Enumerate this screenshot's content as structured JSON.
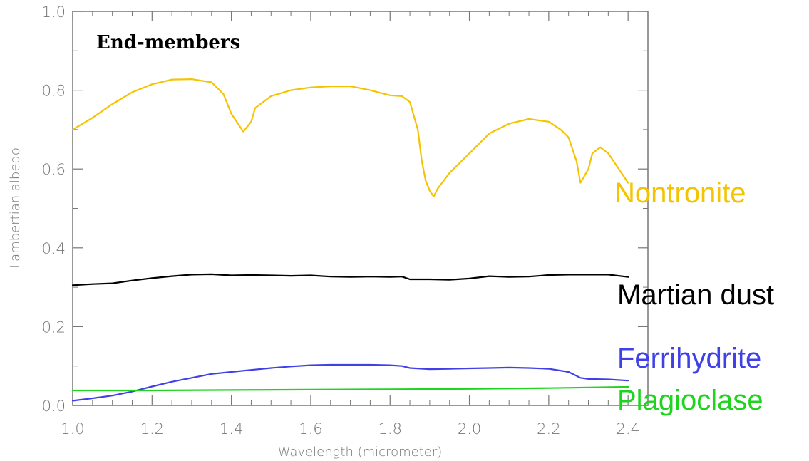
{
  "chart_data": {
    "type": "line",
    "title": "End-members",
    "xlabel": "Wavelength (micrometer)",
    "ylabel": "Lambertian albedo",
    "xlim": [
      1.0,
      2.45
    ],
    "ylim": [
      0.0,
      1.0
    ],
    "x_ticks": [
      "1.0",
      "1.2",
      "1.4",
      "1.6",
      "1.8",
      "2.0",
      "2.2",
      "2.4"
    ],
    "y_ticks": [
      "0.0",
      "0.2",
      "0.4",
      "0.6",
      "0.8",
      "1.0"
    ],
    "grid": false,
    "series": [
      {
        "name": "Nontronite",
        "color": "#f5c400",
        "x": [
          1.0,
          1.05,
          1.1,
          1.15,
          1.2,
          1.25,
          1.3,
          1.35,
          1.38,
          1.4,
          1.42,
          1.43,
          1.45,
          1.46,
          1.5,
          1.55,
          1.6,
          1.65,
          1.7,
          1.75,
          1.8,
          1.83,
          1.85,
          1.87,
          1.88,
          1.89,
          1.9,
          1.91,
          1.92,
          1.95,
          2.0,
          2.05,
          2.1,
          2.15,
          2.2,
          2.23,
          2.25,
          2.27,
          2.28,
          2.3,
          2.31,
          2.33,
          2.35,
          2.37,
          2.4
        ],
        "values": [
          0.7,
          0.73,
          0.765,
          0.795,
          0.815,
          0.827,
          0.828,
          0.82,
          0.79,
          0.74,
          0.71,
          0.695,
          0.72,
          0.755,
          0.785,
          0.8,
          0.807,
          0.81,
          0.81,
          0.8,
          0.787,
          0.785,
          0.77,
          0.7,
          0.62,
          0.57,
          0.545,
          0.53,
          0.55,
          0.59,
          0.64,
          0.69,
          0.715,
          0.727,
          0.72,
          0.7,
          0.68,
          0.62,
          0.565,
          0.6,
          0.64,
          0.655,
          0.64,
          0.61,
          0.565
        ]
      },
      {
        "name": "Martian dust",
        "color": "#000000",
        "x": [
          1.0,
          1.05,
          1.1,
          1.15,
          1.2,
          1.25,
          1.3,
          1.35,
          1.4,
          1.45,
          1.5,
          1.55,
          1.6,
          1.65,
          1.7,
          1.75,
          1.8,
          1.83,
          1.85,
          1.9,
          1.95,
          2.0,
          2.05,
          2.1,
          2.15,
          2.2,
          2.25,
          2.3,
          2.35,
          2.4
        ],
        "values": [
          0.305,
          0.308,
          0.31,
          0.317,
          0.323,
          0.328,
          0.332,
          0.333,
          0.33,
          0.331,
          0.33,
          0.329,
          0.33,
          0.327,
          0.326,
          0.327,
          0.326,
          0.327,
          0.32,
          0.32,
          0.319,
          0.322,
          0.328,
          0.326,
          0.327,
          0.331,
          0.332,
          0.332,
          0.332,
          0.326
        ]
      },
      {
        "name": "Ferrihydrite",
        "color": "#4040e8",
        "x": [
          1.0,
          1.05,
          1.1,
          1.15,
          1.2,
          1.25,
          1.3,
          1.35,
          1.4,
          1.45,
          1.5,
          1.55,
          1.6,
          1.65,
          1.7,
          1.75,
          1.8,
          1.83,
          1.85,
          1.9,
          1.95,
          2.0,
          2.05,
          2.1,
          2.15,
          2.2,
          2.25,
          2.28,
          2.3,
          2.35,
          2.4
        ],
        "values": [
          0.012,
          0.018,
          0.025,
          0.035,
          0.048,
          0.06,
          0.07,
          0.08,
          0.085,
          0.09,
          0.095,
          0.099,
          0.102,
          0.103,
          0.103,
          0.103,
          0.102,
          0.1,
          0.095,
          0.092,
          0.093,
          0.094,
          0.095,
          0.096,
          0.095,
          0.093,
          0.085,
          0.07,
          0.067,
          0.066,
          0.063
        ]
      },
      {
        "name": "Plagioclase",
        "color": "#1fd41f",
        "x": [
          1.0,
          1.2,
          1.4,
          1.6,
          1.8,
          2.0,
          2.2,
          2.4
        ],
        "values": [
          0.038,
          0.038,
          0.039,
          0.04,
          0.041,
          0.042,
          0.044,
          0.047
        ]
      }
    ]
  }
}
